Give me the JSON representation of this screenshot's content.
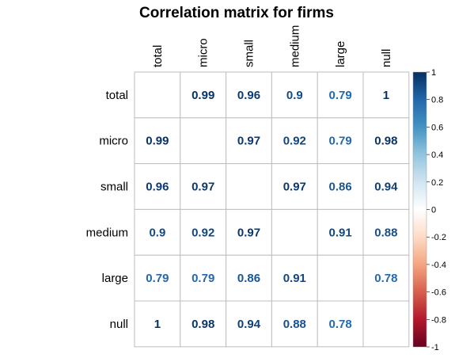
{
  "chart_data": {
    "type": "heatmap",
    "title": "Correlation matrix for firms",
    "row_labels": [
      "total",
      "micro",
      "small",
      "medium",
      "large",
      "null"
    ],
    "col_labels": [
      "total",
      "micro",
      "small",
      "medium",
      "large",
      "null"
    ],
    "matrix": [
      [
        null,
        0.99,
        0.96,
        0.9,
        0.79,
        1
      ],
      [
        0.99,
        null,
        0.97,
        0.92,
        0.79,
        0.98
      ],
      [
        0.96,
        0.97,
        null,
        0.97,
        0.86,
        0.94
      ],
      [
        0.9,
        0.92,
        0.97,
        null,
        0.91,
        0.88
      ],
      [
        0.79,
        0.79,
        0.86,
        0.91,
        null,
        0.78
      ],
      [
        1,
        0.98,
        0.94,
        0.88,
        0.78,
        null
      ]
    ],
    "value_labels": [
      [
        null,
        "0.99",
        "0.96",
        "0.9",
        "0.79",
        "1"
      ],
      [
        "0.99",
        null,
        "0.97",
        "0.92",
        "0.79",
        "0.98"
      ],
      [
        "0.96",
        "0.97",
        null,
        "0.97",
        "0.86",
        "0.94"
      ],
      [
        "0.9",
        "0.92",
        "0.97",
        null,
        "0.91",
        "0.88"
      ],
      [
        "0.79",
        "0.79",
        "0.86",
        "0.91",
        null,
        "0.78"
      ],
      [
        "1",
        "0.98",
        "0.94",
        "0.88",
        "0.78",
        null
      ]
    ],
    "colorbar": {
      "range": [
        -1,
        1
      ],
      "ticks": [
        1,
        0.8,
        0.6,
        0.4,
        0.2,
        0,
        -0.2,
        -0.4,
        -0.6,
        -0.8,
        -1
      ],
      "tick_labels": [
        "1",
        "0.8",
        "0.6",
        "0.4",
        "0.2",
        "0",
        "-0.2",
        "-0.4",
        "-0.6",
        "-0.8",
        "-1"
      ],
      "colors": [
        "#67001F",
        "#B2182B",
        "#D6604D",
        "#F4A582",
        "#FDDBC7",
        "#FFFFFF",
        "#D1E5F0",
        "#92C5DE",
        "#4393C3",
        "#2166AC",
        "#053061"
      ]
    },
    "grid_color": "#bebebe"
  }
}
